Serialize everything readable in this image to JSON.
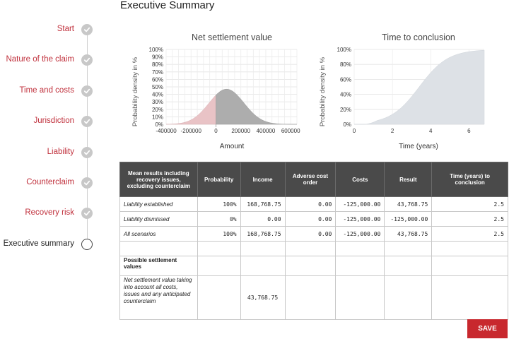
{
  "page": {
    "title": "Executive Summary"
  },
  "steps": [
    {
      "label": "Start",
      "status": "done"
    },
    {
      "label": "Nature of the claim",
      "status": "done"
    },
    {
      "label": "Time and costs",
      "status": "done"
    },
    {
      "label": "Jurisdiction",
      "status": "done"
    },
    {
      "label": "Liability",
      "status": "done"
    },
    {
      "label": "Counterclaim",
      "status": "done"
    },
    {
      "label": "Recovery risk",
      "status": "done"
    },
    {
      "label": "Executive summary",
      "status": "current"
    }
  ],
  "colors": {
    "accent": "#c0303c",
    "button": "#c8282e",
    "header": "#4a4a4a"
  },
  "chart_data": [
    {
      "type": "area",
      "title": "Net settlement value",
      "xlabel": "Amount",
      "ylabel": "Probability density in %",
      "xlim": [
        -400000,
        650000
      ],
      "ylim": [
        0,
        100
      ],
      "xticks": [
        "-400000",
        "-200000",
        "0",
        "200000",
        "400000",
        "600000"
      ],
      "yticks": [
        "0%",
        "10%",
        "20%",
        "30%",
        "40%",
        "50%",
        "60%",
        "70%",
        "80%",
        "90%",
        "100%"
      ],
      "distribution": {
        "kind": "normal",
        "mean": 85000,
        "sd": 140000,
        "peak_percent": 47
      },
      "split_at": 0
    },
    {
      "type": "area",
      "title": "Time to conclusion",
      "xlabel": "Time (years)",
      "ylabel": "Probability density in %",
      "xlim": [
        0,
        6.8
      ],
      "ylim": [
        0,
        100
      ],
      "xticks": [
        "0",
        "2",
        "4",
        "6"
      ],
      "yticks": [
        "0%",
        "20%",
        "40%",
        "60%",
        "80%",
        "100%"
      ],
      "distribution": {
        "kind": "cumulative",
        "mid": 3.4,
        "scale": 0.75
      }
    }
  ],
  "table": {
    "headers": [
      "Mean results including recovery issues, excluding counterclaim",
      "Probability",
      "Income",
      "Adverse cost order",
      "Costs",
      "Result",
      "Time (years) to conclusion"
    ],
    "rows": [
      {
        "label": "Liability established",
        "probability": "100%",
        "income": "168,768.75",
        "adverse": "0.00",
        "costs": "-125,000.00",
        "result": "43,768.75",
        "time": "2.5"
      },
      {
        "label": "Liability dismissed",
        "probability": "0%",
        "income": "0.00",
        "adverse": "0.00",
        "costs": "-125,000.00",
        "result": "-125,000.00",
        "time": "2.5"
      },
      {
        "label": "All scenarios",
        "probability": "100%",
        "income": "168,768.75",
        "adverse": "0.00",
        "costs": "-125,000.00",
        "result": "43,768.75",
        "time": "2.5"
      }
    ],
    "settlement_heading": "Possible settlement values",
    "settlement_note": "Net settlement value taking into account all costs, issues and any anticipated counterclaim",
    "settlement_value": "43,768.75"
  },
  "actions": {
    "save_label": "SAVE"
  }
}
